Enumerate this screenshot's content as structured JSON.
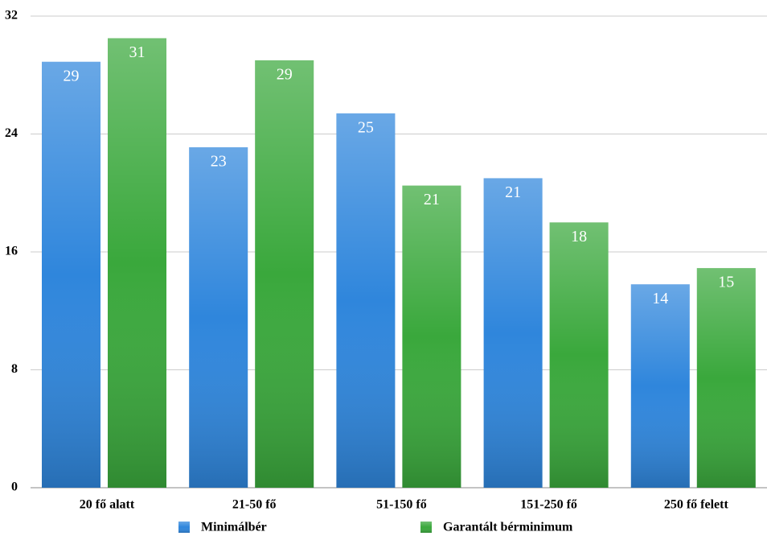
{
  "chart_data": {
    "type": "bar",
    "categories": [
      "20 fő alatt",
      "21-50 fő",
      "51-150 fő",
      "151-250 fő",
      "250 fő felett"
    ],
    "series": [
      {
        "name": "Minimálbér",
        "color": "#2f86dc",
        "values": [
          28.9,
          23.1,
          25.4,
          21.0,
          13.8
        ],
        "value_labels": [
          "29",
          "23",
          "25",
          "21",
          "14"
        ]
      },
      {
        "name": "Garantált bérminimum",
        "color": "#3aa83c",
        "values": [
          30.5,
          29.0,
          20.5,
          18.0,
          14.9
        ],
        "value_labels": [
          "31",
          "29",
          "21",
          "18",
          "15"
        ]
      }
    ],
    "ylim": [
      0,
      32
    ],
    "yticks": [
      0,
      8,
      16,
      24,
      32
    ],
    "grid": true
  }
}
